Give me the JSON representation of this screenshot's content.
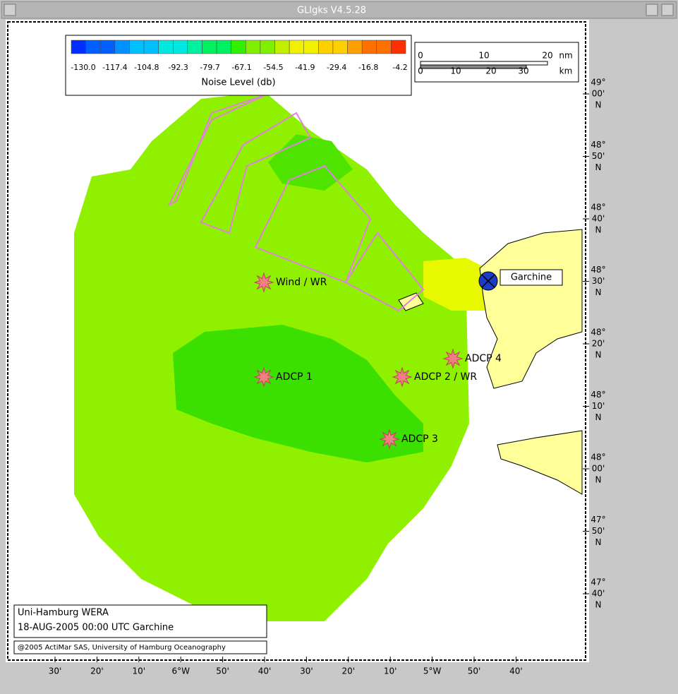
{
  "window": {
    "title": "GLIgks V4.5.28"
  },
  "colorbar": {
    "labels": [
      "-130.0",
      "-117.4",
      "-104.8",
      "-92.3",
      "-79.7",
      "-67.1",
      "-54.5",
      "-41.9",
      "-29.4",
      "-16.8",
      "-4.2"
    ],
    "title": "Noise Level (db)"
  },
  "scale_bar": {
    "nm_ticks": [
      "0",
      "10",
      "20"
    ],
    "nm_unit": "nm",
    "km_ticks": [
      "0",
      "10",
      "20",
      "30"
    ],
    "km_unit": "km"
  },
  "latitude_labels": [
    {
      "deg": "49°",
      "min": "00'",
      "hem": "N"
    },
    {
      "deg": "48°",
      "min": "50'",
      "hem": "N"
    },
    {
      "deg": "48°",
      "min": "40'",
      "hem": "N"
    },
    {
      "deg": "48°",
      "min": "30'",
      "hem": "N"
    },
    {
      "deg": "48°",
      "min": "20'",
      "hem": "N"
    },
    {
      "deg": "48°",
      "min": "10'",
      "hem": "N"
    },
    {
      "deg": "48°",
      "min": "00'",
      "hem": "N"
    },
    {
      "deg": "47°",
      "min": "50'",
      "hem": "N"
    },
    {
      "deg": "47°",
      "min": "40'",
      "hem": "N"
    }
  ],
  "longitude_labels": [
    "30'",
    "20'",
    "10'",
    "6°W",
    "50'",
    "40'",
    "30'",
    "20'",
    "10'",
    "5°W",
    "50'",
    "40'"
  ],
  "stations": [
    {
      "label": "Wind / WR"
    },
    {
      "label": "ADCP 1"
    },
    {
      "label": "ADCP 2 / WR"
    },
    {
      "label": "ADCP 3"
    },
    {
      "label": "ADCP 4"
    }
  ],
  "site": {
    "label": "Garchine"
  },
  "info_box": {
    "line1": "Uni-Hamburg WERA",
    "line2": "18-AUG-2005 00:00 UTC  Garchine",
    "copyright": "@2005 ActiMar SAS, University of Hamburg Oceanography"
  }
}
